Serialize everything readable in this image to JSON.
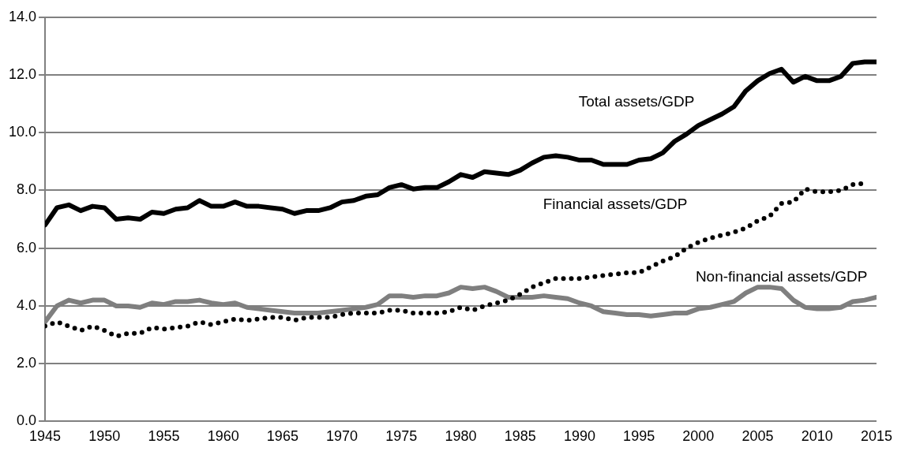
{
  "chart_data": {
    "type": "line",
    "x": [
      1945,
      1946,
      1947,
      1948,
      1949,
      1950,
      1951,
      1952,
      1953,
      1954,
      1955,
      1956,
      1957,
      1958,
      1959,
      1960,
      1961,
      1962,
      1963,
      1964,
      1965,
      1966,
      1967,
      1968,
      1969,
      1970,
      1971,
      1972,
      1973,
      1974,
      1975,
      1976,
      1977,
      1978,
      1979,
      1980,
      1981,
      1982,
      1983,
      1984,
      1985,
      1986,
      1987,
      1988,
      1989,
      1990,
      1991,
      1992,
      1993,
      1994,
      1995,
      1996,
      1997,
      1998,
      1999,
      2000,
      2001,
      2002,
      2003,
      2004,
      2005,
      2006,
      2007,
      2008,
      2009,
      2010,
      2011,
      2012,
      2013,
      2014,
      2015
    ],
    "xlim": [
      1945,
      2015
    ],
    "xticks": [
      1945,
      1950,
      1955,
      1960,
      1965,
      1970,
      1975,
      1980,
      1985,
      1990,
      1995,
      2000,
      2005,
      2010,
      2015
    ],
    "ylim": [
      0,
      14
    ],
    "yticks": [
      {
        "value": 0,
        "label": "0.0"
      },
      {
        "value": 2,
        "label": "2.0"
      },
      {
        "value": 4,
        "label": "4.0"
      },
      {
        "value": 6,
        "label": "6.0"
      },
      {
        "value": 8,
        "label": "8.0"
      },
      {
        "value": 10,
        "label": "10.0"
      },
      {
        "value": 12,
        "label": "12.0"
      },
      {
        "value": 14,
        "label": "14.0"
      }
    ],
    "grid": "y",
    "legend": false,
    "marker": "none",
    "series": [
      {
        "name": "Total assets/GDP",
        "color": "#000000",
        "line_style": "solid",
        "values": [
          6.8,
          7.4,
          7.5,
          7.3,
          7.45,
          7.4,
          7.0,
          7.05,
          7.0,
          7.25,
          7.2,
          7.35,
          7.4,
          7.65,
          7.45,
          7.45,
          7.6,
          7.45,
          7.45,
          7.4,
          7.35,
          7.2,
          7.3,
          7.3,
          7.4,
          7.6,
          7.65,
          7.8,
          7.85,
          8.1,
          8.2,
          8.05,
          8.1,
          8.1,
          8.3,
          8.55,
          8.45,
          8.65,
          8.6,
          8.55,
          8.7,
          8.95,
          9.15,
          9.2,
          9.15,
          9.05,
          9.05,
          8.9,
          8.9,
          8.9,
          9.05,
          9.1,
          9.3,
          9.7,
          9.95,
          10.25,
          10.45,
          10.65,
          10.9,
          11.45,
          11.8,
          12.05,
          12.2,
          11.75,
          11.95,
          11.8,
          11.8,
          11.95,
          12.4,
          12.45,
          12.45
        ]
      },
      {
        "name": "Financial assets/GDP",
        "color": "#000000",
        "line_style": "dotted",
        "values": [
          3.3,
          3.45,
          3.3,
          3.15,
          3.3,
          3.15,
          2.95,
          3.05,
          3.05,
          3.25,
          3.2,
          3.25,
          3.3,
          3.45,
          3.35,
          3.45,
          3.55,
          3.5,
          3.55,
          3.6,
          3.6,
          3.5,
          3.6,
          3.6,
          3.6,
          3.7,
          3.75,
          3.75,
          3.75,
          3.85,
          3.85,
          3.75,
          3.75,
          3.75,
          3.8,
          3.95,
          3.85,
          4.0,
          4.1,
          4.2,
          4.4,
          4.65,
          4.8,
          4.95,
          4.95,
          4.95,
          5.0,
          5.05,
          5.1,
          5.15,
          5.15,
          5.35,
          5.55,
          5.7,
          6.0,
          6.2,
          6.35,
          6.45,
          6.55,
          6.7,
          6.95,
          7.1,
          7.55,
          7.6,
          8.05,
          7.95,
          7.95,
          8.0,
          8.2,
          8.25,
          null
        ]
      },
      {
        "name": "Non-financial assets/GDP",
        "color": "#7f7f7f",
        "line_style": "solid",
        "values": [
          3.45,
          4.0,
          4.2,
          4.1,
          4.2,
          4.2,
          4.0,
          4.0,
          3.95,
          4.1,
          4.05,
          4.15,
          4.15,
          4.2,
          4.1,
          4.05,
          4.1,
          3.95,
          3.9,
          3.85,
          3.8,
          3.75,
          3.75,
          3.75,
          3.8,
          3.85,
          3.9,
          3.95,
          4.05,
          4.35,
          4.35,
          4.3,
          4.35,
          4.35,
          4.45,
          4.65,
          4.6,
          4.65,
          4.5,
          4.3,
          4.3,
          4.3,
          4.35,
          4.3,
          4.25,
          4.1,
          4.0,
          3.8,
          3.75,
          3.7,
          3.7,
          3.65,
          3.7,
          3.75,
          3.75,
          3.9,
          3.95,
          4.05,
          4.15,
          4.45,
          4.65,
          4.65,
          4.6,
          4.2,
          3.95,
          3.9,
          3.9,
          3.95,
          4.15,
          4.2,
          4.3
        ]
      }
    ]
  }
}
